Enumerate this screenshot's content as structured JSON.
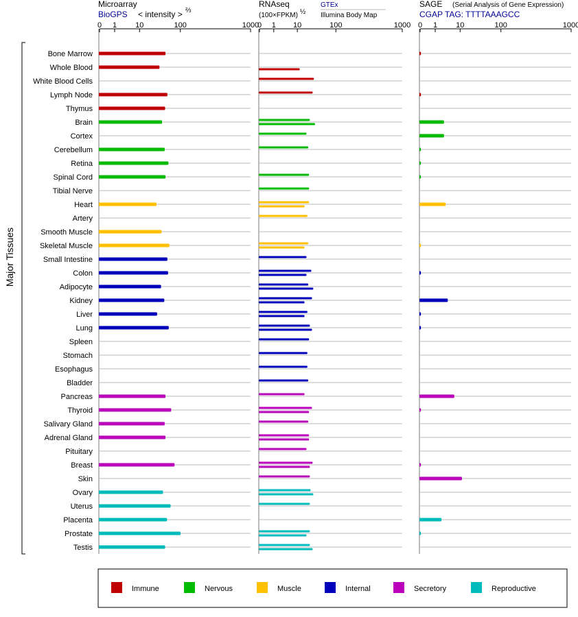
{
  "panels": [
    {
      "key": "microarray",
      "title": "Microarray",
      "source": "BioGPS",
      "scale_note": "< intensity >",
      "scale_exp": "⅔",
      "tick_labels": [
        "0",
        "1",
        "10",
        "100",
        "1000"
      ]
    },
    {
      "key": "rnaseq",
      "title": "RNAseq",
      "unit_note": "(100×FPKM)",
      "unit_exp": "½",
      "source_a": "GTEx",
      "source_b": "Illumina Body Map",
      "tick_labels": [
        "0",
        "1",
        "10",
        "100",
        "1000"
      ]
    },
    {
      "key": "sage",
      "title": "SAGE",
      "title_note": "(Serial Analysis of Gene Expression)",
      "tag": "CGAP TAG: TTTTAAAGCC",
      "tick_labels": [
        "0",
        "1",
        "10",
        "100",
        "1000"
      ]
    }
  ],
  "group_label": "Major Tissues",
  "legend": [
    {
      "name": "Immune",
      "color": "#c00000"
    },
    {
      "name": "Nervous",
      "color": "#00bb00"
    },
    {
      "name": "Muscle",
      "color": "#ffc000"
    },
    {
      "name": "Internal",
      "color": "#0000bb"
    },
    {
      "name": "Secretory",
      "color": "#bb00bb"
    },
    {
      "name": "Reproductive",
      "color": "#00bbbb"
    }
  ],
  "chart_data": {
    "type": "bar",
    "scale_note": "tick positions 0, 1, 10, 100, 1000 on transformed axis",
    "categories": [
      "Bone Marrow",
      "Whole Blood",
      "White Blood Cells",
      "Lymph Node",
      "Thymus",
      "Brain",
      "Cortex",
      "Cerebellum",
      "Retina",
      "Spinal Cord",
      "Tibial Nerve",
      "Heart",
      "Artery",
      "Smooth Muscle",
      "Skeletal Muscle",
      "Small Intestine",
      "Colon",
      "Adipocyte",
      "Kidney",
      "Liver",
      "Lung",
      "Spleen",
      "Stomach",
      "Esophagus",
      "Bladder",
      "Pancreas",
      "Thyroid",
      "Salivary Gland",
      "Adrenal Gland",
      "Pituitary",
      "Breast",
      "Skin",
      "Ovary",
      "Uterus",
      "Placenta",
      "Prostate",
      "Testis"
    ],
    "systems": [
      "Immune",
      "Immune",
      "Immune",
      "Immune",
      "Immune",
      "Nervous",
      "Nervous",
      "Nervous",
      "Nervous",
      "Nervous",
      "Nervous",
      "Muscle",
      "Muscle",
      "Muscle",
      "Muscle",
      "Internal",
      "Internal",
      "Internal",
      "Internal",
      "Internal",
      "Internal",
      "Internal",
      "Internal",
      "Internal",
      "Internal",
      "Secretory",
      "Secretory",
      "Secretory",
      "Secretory",
      "Secretory",
      "Secretory",
      "Secretory",
      "Reproductive",
      "Reproductive",
      "Reproductive",
      "Reproductive",
      "Reproductive"
    ],
    "series": [
      {
        "name": "Microarray",
        "values": [
          45,
          32,
          null,
          50,
          44,
          37,
          null,
          43,
          53,
          45,
          null,
          27,
          null,
          36,
          56,
          50,
          52,
          35,
          42,
          28,
          54,
          null,
          null,
          null,
          null,
          45,
          62,
          43,
          45,
          null,
          75,
          null,
          39,
          60,
          49,
          103,
          44
        ]
      },
      {
        "name": "GTEx",
        "values": [
          null,
          null,
          28,
          26,
          null,
          22,
          18,
          20,
          null,
          21,
          21,
          21,
          19,
          null,
          20,
          18,
          24,
          20,
          25,
          19,
          22,
          21,
          19,
          19,
          20,
          16,
          25,
          20,
          21,
          18,
          26,
          22,
          23,
          22,
          null,
          22,
          22
        ]
      },
      {
        "name": "Illumina Body Map",
        "values": [
          null,
          12,
          null,
          null,
          null,
          30,
          null,
          null,
          null,
          null,
          null,
          16,
          null,
          null,
          16,
          null,
          18,
          27,
          16,
          16,
          25,
          null,
          null,
          null,
          null,
          null,
          21,
          null,
          21,
          null,
          22,
          null,
          27,
          null,
          null,
          18,
          26
        ]
      },
      {
        "name": "SAGE",
        "values": [
          0.1,
          null,
          null,
          0.1,
          null,
          2.4,
          2.4,
          0.1,
          0.1,
          0.1,
          null,
          2.8,
          null,
          null,
          0.1,
          null,
          0.1,
          null,
          3.4,
          0.1,
          0.1,
          null,
          null,
          null,
          null,
          6.2,
          0.1,
          null,
          null,
          null,
          0.1,
          11.5,
          null,
          null,
          1.9,
          0.1,
          null
        ]
      }
    ],
    "xlim": [
      0,
      1000
    ]
  }
}
